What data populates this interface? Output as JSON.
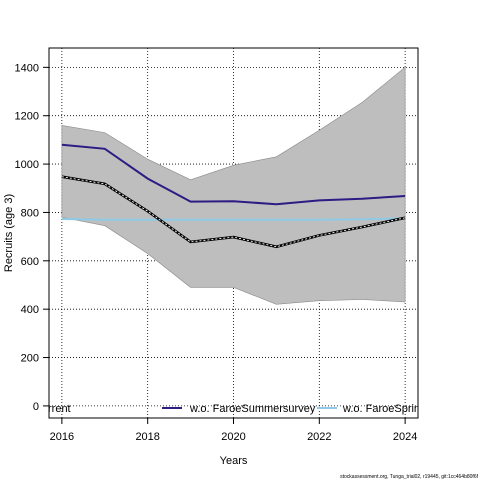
{
  "chart_data": {
    "type": "line",
    "title": "",
    "xlabel": "Years",
    "ylabel": "Recruits (age 3)",
    "x": [
      2016,
      2017,
      2018,
      2019,
      2020,
      2021,
      2022,
      2023,
      2024
    ],
    "xlim": [
      2015.7,
      2024.3
    ],
    "ylim": [
      -50,
      1480
    ],
    "xticks": [
      "2016",
      "2018",
      "2020",
      "2022",
      "2024"
    ],
    "yticks": [
      "0",
      "200",
      "400",
      "600",
      "800",
      "1000",
      "1200",
      "1400"
    ],
    "grid": true,
    "band": {
      "upper": [
        1160,
        1130,
        1020,
        935,
        995,
        1030,
        1140,
        1255,
        1400
      ],
      "lower": [
        780,
        745,
        630,
        490,
        490,
        420,
        435,
        440,
        430
      ],
      "color": "#bebebe"
    },
    "series": [
      {
        "key": "current",
        "values": [
          948,
          918,
          805,
          678,
          698,
          658,
          705,
          740,
          778
        ],
        "color": "#000000",
        "style": "dashed"
      },
      {
        "name": "w.o. FaroeSummersurvey",
        "values": [
          1080,
          1063,
          940,
          845,
          846,
          834,
          850,
          857,
          868
        ],
        "color": "#2e1b84",
        "style": "solid"
      },
      {
        "name": "w.o. FaroeSpringsurvey",
        "values": [
          773,
          770,
          770,
          770,
          770,
          770,
          770,
          772,
          775
        ],
        "color": "#8ecae6",
        "style": "solid"
      }
    ],
    "legend": {
      "placement": "bottom",
      "entries": [
        "rrent",
        "w.o. FaroeSummersurvey",
        "w.o. FaroeSpring"
      ]
    }
  },
  "footer": "stockassessment.org, Tunga_trial02, r19445, git:1cc464b80f6f"
}
